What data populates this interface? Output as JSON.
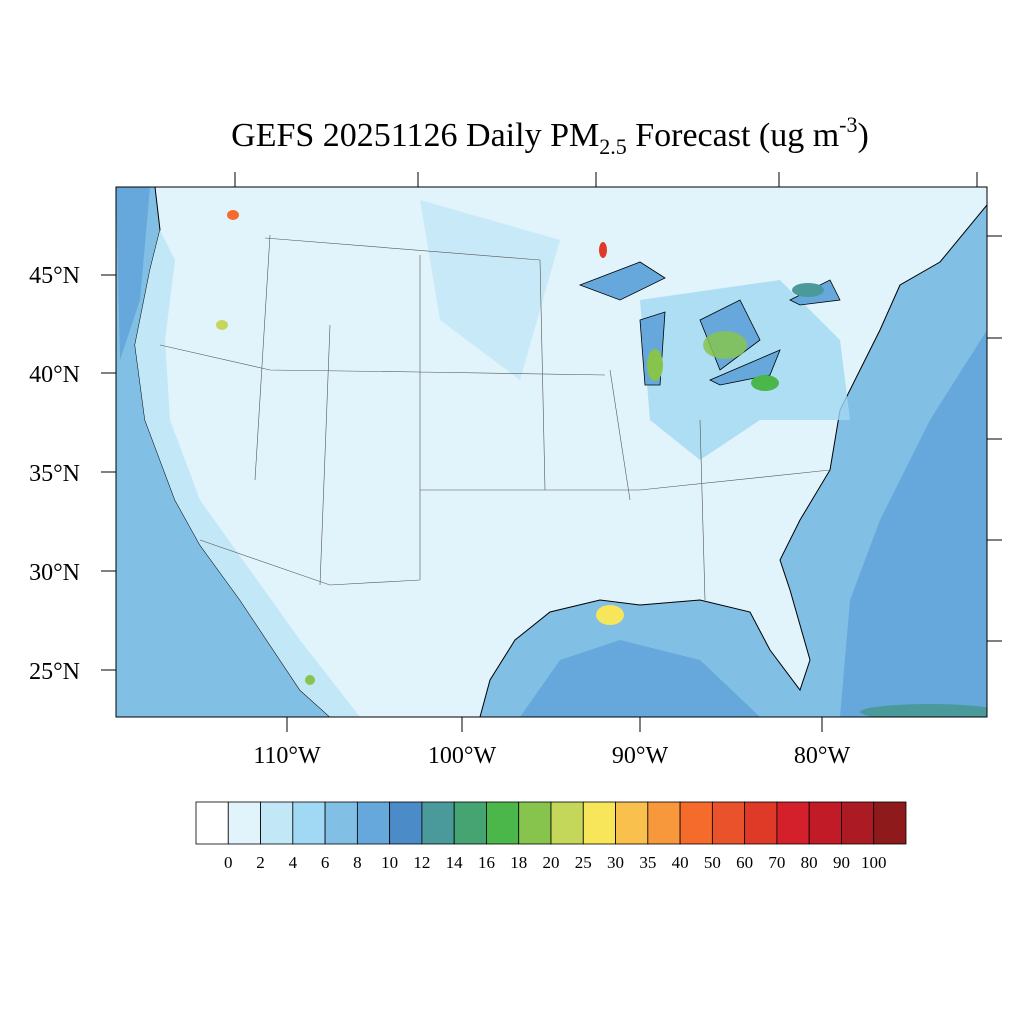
{
  "title": {
    "main": "GEFS 20251126 Daily PM",
    "sub": "2.5",
    "rest": " Forecast (ug m",
    "sup": "-3",
    "end": ")"
  },
  "lat_labels": [
    "45°N",
    "40°N",
    "35°N",
    "30°N",
    "25°N"
  ],
  "lon_labels": [
    "110°W",
    "100°W",
    "90°W",
    "80°W"
  ],
  "colorbar": {
    "levels": [
      0,
      2,
      4,
      6,
      8,
      10,
      12,
      14,
      16,
      18,
      20,
      25,
      30,
      35,
      40,
      50,
      60,
      70,
      80,
      90,
      100
    ],
    "colors": [
      "#ffffff",
      "#e1f3fb",
      "#c2e7f7",
      "#a1d8f3",
      "#81bfe5",
      "#66a8dc",
      "#4a8bc8",
      "#4a9a9c",
      "#45a471",
      "#4bb649",
      "#86c44e",
      "#c4d75a",
      "#f7e65a",
      "#f9c04d",
      "#f7983d",
      "#f46b2b",
      "#ea522b",
      "#df3a28",
      "#d3202b",
      "#c01b26",
      "#ac1b23",
      "#8e1a1c"
    ]
  }
}
